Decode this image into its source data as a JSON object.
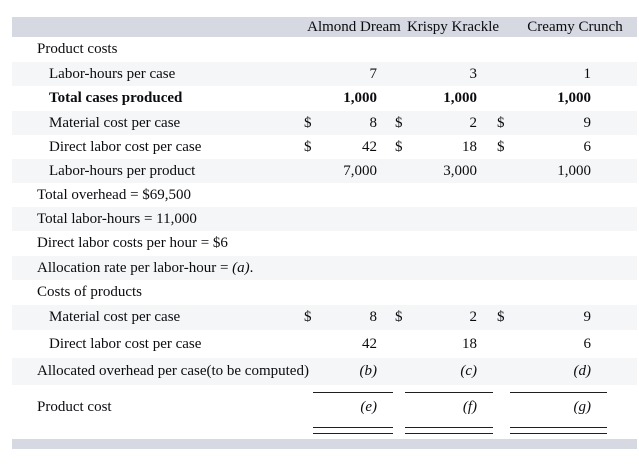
{
  "theme": {
    "band_color": "#d6d9e2",
    "stripe_color": "#f5f6f7",
    "text_color": "#0b0c10",
    "rule_color": "#1f1f1f"
  },
  "header": {
    "columns": [
      "Almond Dream",
      "Krispy Krackle",
      "Creamy Crunch"
    ]
  },
  "rows": {
    "product_costs": {
      "label": "Product costs"
    },
    "labor_hours_per_case": {
      "label": "Labor-hours per case",
      "almond": "7",
      "krispy": "3",
      "creamy": "1"
    },
    "total_cases_produced": {
      "label": "Total cases produced",
      "almond": "1,000",
      "krispy": "1,000",
      "creamy": "1,000"
    },
    "material_cost_1": {
      "label": "Material cost per case",
      "dollar": "$",
      "almond": "8",
      "krispy": "2",
      "creamy": "9"
    },
    "direct_labor_1": {
      "label": "Direct labor cost per case",
      "dollar": "$",
      "almond": "42",
      "krispy": "18",
      "creamy": "6"
    },
    "labor_hours_per_product": {
      "label": "Labor-hours per product",
      "almond": "7,000",
      "krispy": "3,000",
      "creamy": "1,000"
    },
    "total_overhead": {
      "label": "Total overhead = $69,500"
    },
    "total_labor_hours": {
      "label": "Total labor-hours = 11,000"
    },
    "direct_labor_per_hour": {
      "label": "Direct labor costs per hour = $6"
    },
    "allocation_rate": {
      "prefix": "Allocation rate per labor-hour = ",
      "var": "(a)",
      "suffix": "."
    },
    "costs_of_products": {
      "label": "Costs of products"
    },
    "material_cost_2": {
      "label": "Material cost per case",
      "dollar": "$",
      "almond": "8",
      "krispy": "2",
      "creamy": "9"
    },
    "direct_labor_2": {
      "label": "Direct labor cost per case",
      "almond": "42",
      "krispy": "18",
      "creamy": "6"
    },
    "allocated_overhead": {
      "label": "Allocated overhead per case(to be computed)",
      "almond": "(b)",
      "krispy": "(c)",
      "creamy": "(d)"
    },
    "product_cost": {
      "label": "Product cost",
      "almond": "(e)",
      "krispy": "(f)",
      "creamy": "(g)"
    }
  }
}
